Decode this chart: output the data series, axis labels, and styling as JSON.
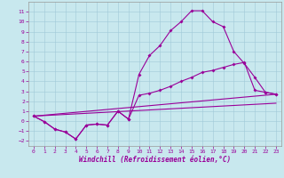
{
  "xlabel": "Windchill (Refroidissement éolien,°C)",
  "xlim": [
    -0.5,
    23.5
  ],
  "ylim": [
    -2.5,
    12.0
  ],
  "yticks": [
    -2,
    -1,
    0,
    1,
    2,
    3,
    4,
    5,
    6,
    7,
    8,
    9,
    10,
    11
  ],
  "xticks": [
    0,
    1,
    2,
    3,
    4,
    5,
    6,
    7,
    8,
    9,
    10,
    11,
    12,
    13,
    14,
    15,
    16,
    17,
    18,
    19,
    20,
    21,
    22,
    23
  ],
  "bg_color": "#c8e8ee",
  "line_color": "#990099",
  "line1_x": [
    0,
    1,
    2,
    3,
    4,
    5,
    6,
    7,
    8,
    9,
    10,
    11,
    12,
    13,
    14,
    15,
    16,
    17,
    18,
    19,
    20,
    21,
    22,
    23
  ],
  "line1_y": [
    0.5,
    -0.05,
    -0.8,
    -1.1,
    -1.8,
    -0.4,
    -0.3,
    -0.4,
    1.0,
    0.2,
    4.7,
    6.6,
    7.6,
    9.1,
    10.0,
    11.1,
    11.1,
    10.0,
    9.5,
    7.0,
    5.8,
    4.4,
    2.9,
    2.7
  ],
  "line2_x": [
    0,
    1,
    2,
    3,
    4,
    5,
    6,
    7,
    8,
    9,
    10,
    11,
    12,
    13,
    14,
    15,
    16,
    17,
    18,
    19,
    20,
    21,
    22,
    23
  ],
  "line2_y": [
    0.5,
    -0.05,
    -0.8,
    -1.1,
    -1.8,
    -0.4,
    -0.3,
    -0.4,
    1.0,
    0.2,
    2.6,
    2.8,
    3.1,
    3.5,
    4.0,
    4.4,
    4.9,
    5.1,
    5.4,
    5.7,
    5.9,
    3.1,
    2.9,
    2.7
  ],
  "line3_x": [
    0,
    23
  ],
  "line3_y": [
    0.5,
    2.7
  ],
  "line4_x": [
    0,
    23
  ],
  "line4_y": [
    0.5,
    1.8
  ]
}
